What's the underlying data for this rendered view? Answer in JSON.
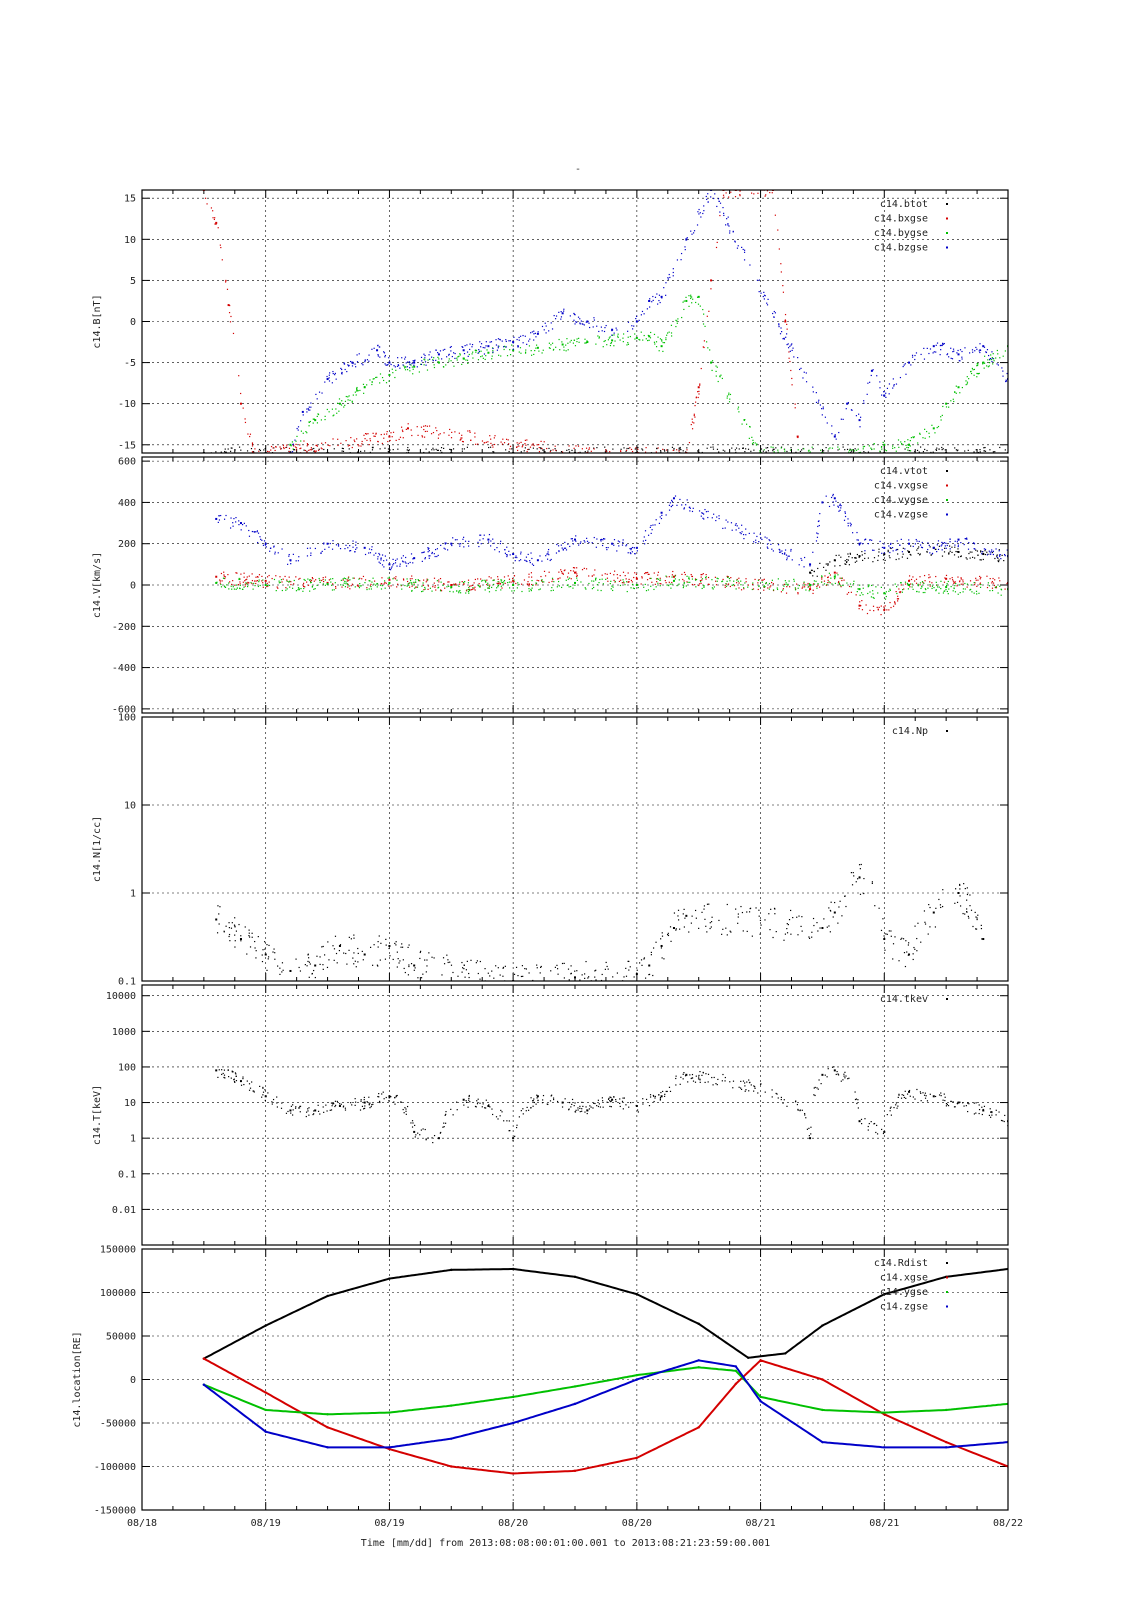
{
  "page": {
    "top_mark": "-"
  },
  "time_axis": {
    "labels": [
      "08/18",
      "08/19",
      "08/19",
      "08/20",
      "08/20",
      "08/21",
      "08/21",
      "08/22"
    ],
    "caption": "Time [mm/dd]  from 2013:08:08:00:01:00.001  to  2013:08:21:23:59:00.001"
  },
  "colors": {
    "black": "#000000",
    "red": "#d40000",
    "green": "#00c000",
    "blue": "#0000c8"
  },
  "chart_data": [
    {
      "id": "mag",
      "type": "scatter",
      "ylabel": "c14.B[nT]",
      "scale": "linear",
      "ylim": [
        -16,
        16
      ],
      "yticks": [
        -15,
        -10,
        -5,
        0,
        5,
        10,
        15
      ],
      "yticklabels": [
        "-15",
        "-10",
        "-5",
        "0",
        "5",
        "10",
        "15"
      ],
      "series": [
        {
          "name": "c14.btot",
          "color": "#000000",
          "x": [
            0.5,
            1.0,
            1.5,
            2.0,
            2.5,
            3.0,
            3.5,
            4.0,
            4.5,
            5.0,
            5.5,
            6.0,
            6.5,
            7.0
          ],
          "y": [
            -16,
            -16,
            -16,
            -16,
            -16,
            -16,
            -16,
            -16,
            -16,
            -16,
            -16,
            -16,
            -16,
            -16
          ]
        },
        {
          "name": "c14.bxgse",
          "color": "#d40000",
          "x": [
            0.5,
            0.6,
            0.7,
            0.8,
            0.9,
            2.0,
            2.15,
            3.6,
            4.4,
            4.5,
            4.6,
            4.7,
            4.8,
            5.1,
            5.2,
            5.3
          ],
          "y": [
            16,
            12,
            2,
            -10,
            -16,
            -14,
            -13,
            -16,
            -16,
            -8,
            5,
            16,
            16,
            16,
            0,
            -14
          ]
        },
        {
          "name": "c14.bygse",
          "color": "#00c000",
          "x": [
            1.2,
            1.4,
            1.6,
            1.8,
            2.0,
            2.2,
            2.4,
            2.6,
            2.8,
            3.0,
            3.2,
            3.4,
            3.6,
            3.8,
            4.0,
            4.1,
            4.2,
            4.4,
            4.5,
            4.6,
            5.0,
            5.5,
            5.8,
            6.0,
            6.2,
            6.4,
            6.5,
            6.6,
            6.8,
            7.0
          ],
          "y": [
            -15,
            -12,
            -10,
            -8,
            -6.5,
            -5.5,
            -5,
            -4.5,
            -3.8,
            -3.5,
            -3.2,
            -2.8,
            -2.5,
            -2.3,
            -2,
            -1.8,
            -3,
            2.5,
            3,
            -5,
            -16,
            -16,
            -16,
            -15,
            -15,
            -13,
            -10,
            -8,
            -5,
            -3
          ]
        },
        {
          "name": "c14.bzgse",
          "color": "#0000c8",
          "x": [
            1.2,
            1.3,
            1.5,
            1.7,
            1.9,
            2.0,
            2.2,
            2.4,
            2.6,
            2.8,
            3.0,
            3.2,
            3.4,
            3.6,
            3.8,
            4.0,
            4.1,
            4.2,
            4.4,
            4.6,
            5.6,
            5.7,
            5.8,
            5.9,
            6.0,
            6.2,
            6.4,
            6.6,
            6.8,
            7.0
          ],
          "y": [
            -16,
            -11,
            -7,
            -5,
            -3.5,
            -5,
            -5,
            -4,
            -3.5,
            -3,
            -2.5,
            -1.5,
            1,
            0,
            -1,
            0,
            2.5,
            3,
            10,
            16,
            -14,
            -10,
            -12,
            -6,
            -9,
            -5,
            -3,
            -4,
            -3,
            -7
          ]
        }
      ]
    },
    {
      "id": "vel",
      "type": "scatter",
      "ylabel": "c14.V[km/s]",
      "scale": "linear",
      "ylim": [
        -620,
        620
      ],
      "yticks": [
        -600,
        -400,
        -200,
        0,
        200,
        400,
        600
      ],
      "yticklabels": [
        "-600",
        "-400",
        "-200",
        "0",
        "200",
        "400",
        "600"
      ],
      "series": [
        {
          "name": "c14.vtot",
          "color": "#000000",
          "x": [
            5.4,
            5.6,
            5.8,
            6.0,
            6.2,
            6.4,
            6.6,
            6.8,
            7.0
          ],
          "y": [
            60,
            120,
            140,
            150,
            160,
            180,
            160,
            150,
            140
          ]
        },
        {
          "name": "c14.vxgse",
          "color": "#d40000",
          "x": [
            0.6,
            1.0,
            1.5,
            2.0,
            2.5,
            3.0,
            3.5,
            4.0,
            4.3,
            5.4,
            5.6,
            5.8,
            6.0,
            6.2,
            6.5,
            7.0
          ],
          "y": [
            40,
            20,
            10,
            25,
            0,
            20,
            60,
            30,
            40,
            -20,
            60,
            -100,
            -120,
            20,
            30,
            10
          ]
        },
        {
          "name": "c14.vygse",
          "color": "#00c000",
          "x": [
            0.6,
            1.0,
            1.5,
            2.0,
            2.5,
            3.0,
            3.5,
            4.0,
            4.3,
            5.4,
            5.6,
            5.8,
            6.0,
            6.2,
            6.5,
            7.0
          ],
          "y": [
            10,
            0,
            5,
            10,
            -10,
            0,
            10,
            0,
            20,
            0,
            40,
            -20,
            -40,
            0,
            -10,
            -20
          ]
        },
        {
          "name": "c14.vzgse",
          "color": "#0000c8",
          "x": [
            0.6,
            0.8,
            1.0,
            1.2,
            1.5,
            1.8,
            2.0,
            2.2,
            2.5,
            2.8,
            3.0,
            3.2,
            3.5,
            3.8,
            4.0,
            4.2,
            4.3,
            5.4,
            5.5,
            5.6,
            5.8,
            6.0,
            6.2,
            6.4,
            6.6,
            7.0
          ],
          "y": [
            320,
            300,
            200,
            120,
            200,
            180,
            100,
            130,
            200,
            220,
            150,
            120,
            220,
            200,
            180,
            350,
            420,
            100,
            400,
            420,
            200,
            180,
            200,
            180,
            220,
            140
          ]
        }
      ]
    },
    {
      "id": "dens",
      "type": "scatter",
      "ylabel": "c14.N[1/cc]",
      "scale": "log",
      "ylim": [
        0.1,
        100
      ],
      "yticks": [
        0.1,
        1,
        10,
        100
      ],
      "yticklabels": [
        "0.1",
        "1",
        "10",
        "100"
      ],
      "series": [
        {
          "name": "c14.Np",
          "color": "#000000",
          "x": [
            0.6,
            0.8,
            1.0,
            1.2,
            1.4,
            1.6,
            1.8,
            2.0,
            2.2,
            3.0,
            3.5,
            4.0,
            4.1,
            4.2,
            4.3,
            4.4,
            5.5,
            5.6,
            5.8,
            6.0,
            6.2,
            6.4,
            6.6,
            6.8
          ],
          "y": [
            0.5,
            0.3,
            0.2,
            0.13,
            0.15,
            0.25,
            0.2,
            0.25,
            0.15,
            0.1,
            0.11,
            0.12,
            0.15,
            0.25,
            0.4,
            0.55,
            0.4,
            0.6,
            1.5,
            0.3,
            0.2,
            0.6,
            1.0,
            0.3
          ]
        }
      ]
    },
    {
      "id": "temp",
      "type": "scatter",
      "ylabel": "c14.T[keV]",
      "scale": "log",
      "ylim": [
        0.001,
        20000
      ],
      "yticks": [
        0.01,
        0.1,
        1,
        10,
        100,
        1000,
        10000
      ],
      "yticklabels": [
        "0.01",
        "0.1",
        "1",
        "10",
        "100",
        "1000",
        "10000"
      ],
      "series": [
        {
          "name": "c14.tkev",
          "color": "#000000",
          "x": [
            0.6,
            0.8,
            1.0,
            1.2,
            1.4,
            1.6,
            1.8,
            2.0,
            2.2,
            2.4,
            2.6,
            2.8,
            3.0,
            3.2,
            3.4,
            3.6,
            3.8,
            4.0,
            4.2,
            4.4,
            5.4,
            5.5,
            5.6,
            5.8,
            6.0,
            6.2,
            6.4,
            6.6,
            6.8,
            7.0
          ],
          "y": [
            80,
            40,
            15,
            6,
            6,
            8,
            10,
            15,
            1.5,
            1,
            12,
            8,
            1,
            15,
            10,
            6,
            12,
            8,
            15,
            60,
            1,
            60,
            80,
            3,
            1.5,
            20,
            15,
            10,
            6,
            3
          ]
        }
      ]
    },
    {
      "id": "loc",
      "type": "line",
      "ylabel": "c14.location[RE]",
      "scale": "linear",
      "ylim": [
        -150000,
        150000
      ],
      "yticks": [
        -150000,
        -100000,
        -50000,
        0,
        50000,
        100000,
        150000
      ],
      "yticklabels": [
        "-150000",
        "-100000",
        "-50000",
        "0",
        "50000",
        "100000",
        "150000"
      ],
      "series": [
        {
          "name": "c14.Rdist",
          "color": "#000000",
          "x": [
            0.5,
            1.0,
            1.5,
            2.0,
            2.5,
            3.0,
            3.5,
            4.0,
            4.5,
            4.9,
            5.2,
            5.5,
            6.0,
            6.5,
            7.0
          ],
          "y": [
            24000,
            62000,
            96000,
            116000,
            126000,
            127000,
            118000,
            98000,
            64000,
            25000,
            30000,
            62000,
            98000,
            118000,
            127000
          ]
        },
        {
          "name": "c14.xgse",
          "color": "#d40000",
          "x": [
            0.5,
            1.0,
            1.5,
            2.0,
            2.5,
            3.0,
            3.5,
            4.0,
            4.5,
            4.8,
            5.0,
            5.5,
            6.0,
            6.5,
            7.0
          ],
          "y": [
            24000,
            -15000,
            -55000,
            -80000,
            -100000,
            -108000,
            -105000,
            -90000,
            -55000,
            -5000,
            22000,
            0,
            -40000,
            -72000,
            -100000
          ]
        },
        {
          "name": "c14.ygse",
          "color": "#00c000",
          "x": [
            0.5,
            1.0,
            1.5,
            2.0,
            2.5,
            3.0,
            3.5,
            4.0,
            4.5,
            4.8,
            5.0,
            5.5,
            6.0,
            6.5,
            7.0
          ],
          "y": [
            -6000,
            -35000,
            -40000,
            -38000,
            -30000,
            -20000,
            -8000,
            5000,
            14000,
            10000,
            -20000,
            -35000,
            -38000,
            -35000,
            -28000
          ]
        },
        {
          "name": "c14.zgse",
          "color": "#0000c8",
          "x": [
            0.5,
            1.0,
            1.5,
            2.0,
            2.5,
            3.0,
            3.5,
            4.0,
            4.5,
            4.8,
            5.0,
            5.5,
            6.0,
            6.5,
            7.0
          ],
          "y": [
            -6000,
            -60000,
            -78000,
            -78000,
            -68000,
            -50000,
            -28000,
            0,
            22000,
            15000,
            -25000,
            -72000,
            -78000,
            -78000,
            -72000
          ]
        }
      ]
    }
  ]
}
